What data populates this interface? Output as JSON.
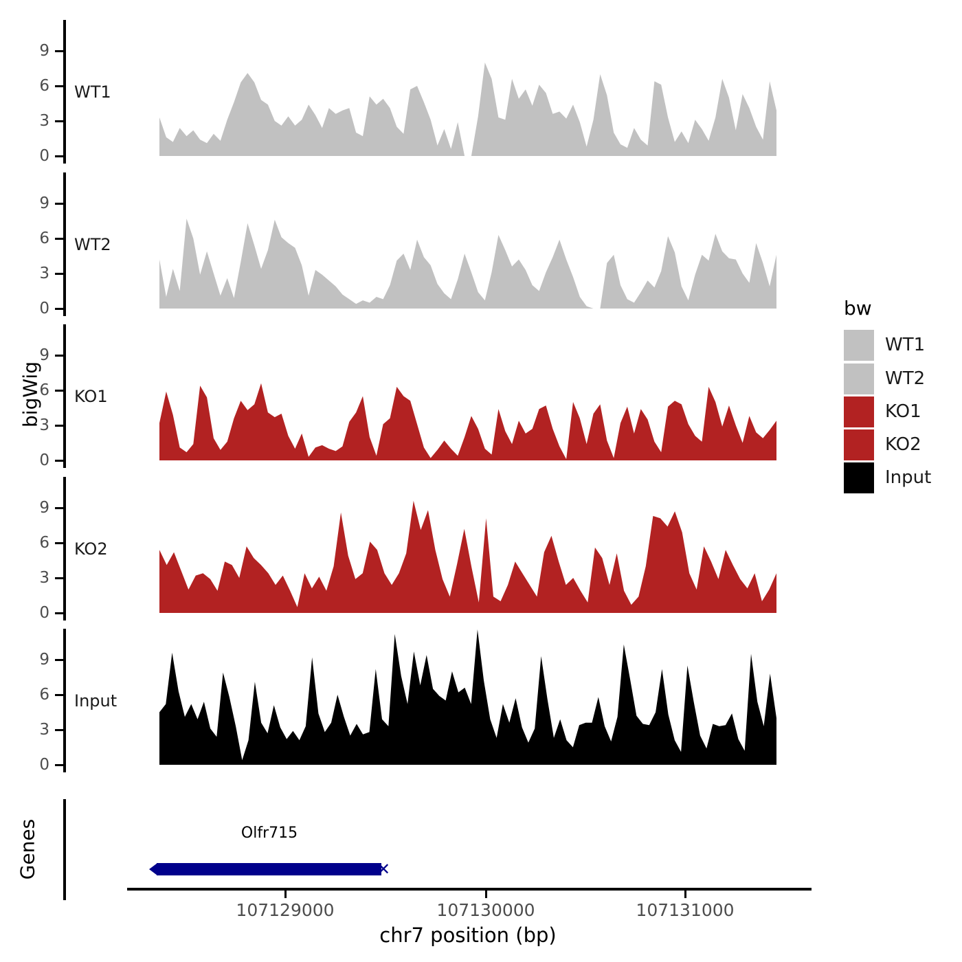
{
  "figure": {
    "y_axis_label": "bigWig",
    "genes_label": "Genes",
    "y_ticks": [
      "9",
      "6",
      "3",
      "0"
    ],
    "x_axis": {
      "title": "chr7 position (bp)",
      "ticks": [
        "107129000",
        "107130000",
        "107131000"
      ]
    }
  },
  "tracks": [
    {
      "label": "WT1",
      "color": "#c1c1c1"
    },
    {
      "label": "WT2",
      "color": "#c1c1c1"
    },
    {
      "label": "KO1",
      "color": "#b22222"
    },
    {
      "label": "KO2",
      "color": "#b22222"
    },
    {
      "label": "Input",
      "color": "#000000"
    }
  ],
  "legend": {
    "title": "bw",
    "items": [
      {
        "label": "WT1",
        "color": "#c1c1c1"
      },
      {
        "label": "WT2",
        "color": "#c1c1c1"
      },
      {
        "label": "KO1",
        "color": "#b22222"
      },
      {
        "label": "KO2",
        "color": "#b22222"
      },
      {
        "label": "Input",
        "color": "#000000"
      }
    ]
  },
  "gene": {
    "label": "Olfr715",
    "strand": "-",
    "color": "#00008b",
    "end_marker": "✕",
    "approx_start_bp": 107128360,
    "approx_end_bp": 107129480
  },
  "chart_data": {
    "type": "area",
    "title": "",
    "xlabel": "chr7 position (bp)",
    "ylabel": "bigWig",
    "x_range_bp": [
      107128370,
      107131460
    ],
    "x_tick_values": [
      107129000,
      107130000,
      107131000
    ],
    "y_tick_values": [
      0,
      3,
      6,
      9
    ],
    "ylim": [
      0,
      11.6
    ],
    "grid": false,
    "legend_position": "right",
    "layout": "five stacked genome coverage tracks sharing one x axis, plus a gene model track",
    "series": [
      {
        "name": "WT1",
        "color": "#c1c1c1",
        "values": [
          3.3,
          1.6,
          1.2,
          2.4,
          1.7,
          2.2,
          1.4,
          1.1,
          1.9,
          1.3,
          3.1,
          4.6,
          6.3,
          7.1,
          6.3,
          4.8,
          4.4,
          3.0,
          2.6,
          3.4,
          2.6,
          3.1,
          4.4,
          3.5,
          2.4,
          4.1,
          3.6,
          3.9,
          4.1,
          2.0,
          1.7,
          5.1,
          4.4,
          4.9,
          4.1,
          2.5,
          1.9,
          5.7,
          6.0,
          4.6,
          3.1,
          0.9,
          2.3,
          0.6,
          2.9,
          0.0,
          0.0,
          3.4,
          8.0,
          6.6,
          3.3,
          3.1,
          6.6,
          4.9,
          5.7,
          4.3,
          6.1,
          5.4,
          3.6,
          3.8,
          3.2,
          4.4,
          2.9,
          0.8,
          3.1,
          7.0,
          5.2,
          2.0,
          1.0,
          0.7,
          2.4,
          1.4,
          0.9,
          6.4,
          6.1,
          3.3,
          1.2,
          2.1,
          1.1,
          3.1,
          2.3,
          1.3,
          3.3,
          6.6,
          5.0,
          2.2,
          5.3,
          4.1,
          2.5,
          1.4,
          6.4,
          3.9
        ]
      },
      {
        "name": "WT2",
        "color": "#c1c1c1",
        "values": [
          4.2,
          1.0,
          3.4,
          1.5,
          7.7,
          6.0,
          2.9,
          4.9,
          3.0,
          1.1,
          2.6,
          0.9,
          4.0,
          7.3,
          5.4,
          3.4,
          5.0,
          7.6,
          6.1,
          5.6,
          5.2,
          3.7,
          1.1,
          3.3,
          2.9,
          2.4,
          1.9,
          1.2,
          0.8,
          0.4,
          0.7,
          0.5,
          1.0,
          0.8,
          2.0,
          4.1,
          4.7,
          3.3,
          5.9,
          4.4,
          3.7,
          2.1,
          1.3,
          0.8,
          2.5,
          4.7,
          3.1,
          1.4,
          0.7,
          3.1,
          6.3,
          5.0,
          3.6,
          4.2,
          3.3,
          2.0,
          1.5,
          3.1,
          4.4,
          5.9,
          4.2,
          2.7,
          1.0,
          0.2,
          0.0,
          0.0,
          3.9,
          4.6,
          2.0,
          0.8,
          0.5,
          1.4,
          2.4,
          1.8,
          3.2,
          6.2,
          4.8,
          1.9,
          0.7,
          2.9,
          4.6,
          4.1,
          6.4,
          4.9,
          4.3,
          4.2,
          3.0,
          2.2,
          5.6,
          3.9,
          1.9,
          4.6
        ]
      },
      {
        "name": "KO1",
        "color": "#b22222",
        "values": [
          3.2,
          5.9,
          3.9,
          1.1,
          0.7,
          1.4,
          6.4,
          5.4,
          1.9,
          0.9,
          1.6,
          3.6,
          5.1,
          4.3,
          4.8,
          6.6,
          4.1,
          3.7,
          4.0,
          2.1,
          1.0,
          2.3,
          0.3,
          1.1,
          1.3,
          1.0,
          0.8,
          1.2,
          3.3,
          4.1,
          5.5,
          2.0,
          0.4,
          3.1,
          3.6,
          6.3,
          5.5,
          5.1,
          3.1,
          1.1,
          0.2,
          0.9,
          1.7,
          1.0,
          0.4,
          2.0,
          3.8,
          2.7,
          1.0,
          0.5,
          4.4,
          2.5,
          1.4,
          3.4,
          2.3,
          2.7,
          4.4,
          4.7,
          2.7,
          1.2,
          0.1,
          5.0,
          3.6,
          1.4,
          4.0,
          4.8,
          1.7,
          0.2,
          3.2,
          4.6,
          2.3,
          4.4,
          3.5,
          1.6,
          0.7,
          4.6,
          5.1,
          4.8,
          3.1,
          2.1,
          1.6,
          6.3,
          5.0,
          2.9,
          4.7,
          3.0,
          1.5,
          3.8,
          2.4,
          1.9,
          2.6,
          3.4
        ]
      },
      {
        "name": "KO2",
        "color": "#b22222",
        "values": [
          5.4,
          4.1,
          5.2,
          3.6,
          2.0,
          3.2,
          3.4,
          2.9,
          1.9,
          4.4,
          4.1,
          3.0,
          5.7,
          4.7,
          4.1,
          3.4,
          2.4,
          3.2,
          1.9,
          0.5,
          3.4,
          2.1,
          3.1,
          1.9,
          4.0,
          8.6,
          4.9,
          2.9,
          3.4,
          6.1,
          5.4,
          3.4,
          2.4,
          3.4,
          5.1,
          9.6,
          7.1,
          8.8,
          5.4,
          2.9,
          1.4,
          4.2,
          7.2,
          3.9,
          0.9,
          8.1,
          1.4,
          1.0,
          2.4,
          4.4,
          3.4,
          2.4,
          1.4,
          5.2,
          6.6,
          4.4,
          2.4,
          3.0,
          1.9,
          0.9,
          5.6,
          4.7,
          2.4,
          5.1,
          1.9,
          0.7,
          1.4,
          4.0,
          8.3,
          8.1,
          7.4,
          8.7,
          6.9,
          3.4,
          2.0,
          5.7,
          4.4,
          2.9,
          5.4,
          4.1,
          2.9,
          2.1,
          3.4,
          1.0,
          2.0,
          3.4
        ]
      },
      {
        "name": "Input",
        "color": "#000000",
        "values": [
          4.5,
          5.2,
          9.6,
          6.3,
          4.1,
          5.2,
          3.9,
          5.4,
          3.1,
          2.4,
          7.9,
          5.8,
          3.3,
          0.4,
          2.1,
          7.1,
          3.6,
          2.7,
          5.1,
          3.2,
          2.2,
          2.9,
          2.1,
          3.3,
          9.2,
          4.4,
          2.8,
          3.6,
          6.0,
          4.1,
          2.5,
          3.5,
          2.6,
          2.8,
          8.2,
          3.9,
          3.3,
          11.2,
          7.6,
          5.2,
          9.7,
          6.8,
          9.4,
          6.5,
          5.9,
          5.5,
          8.0,
          6.2,
          6.6,
          5.2,
          11.6,
          7.2,
          3.9,
          2.3,
          5.2,
          3.6,
          5.7,
          3.2,
          1.9,
          3.1,
          9.3,
          5.6,
          2.3,
          3.9,
          2.1,
          1.5,
          3.4,
          3.6,
          3.6,
          5.8,
          3.3,
          2.0,
          4.1,
          10.3,
          7.3,
          4.2,
          3.5,
          3.4,
          4.5,
          8.2,
          4.3,
          2.1,
          1.1,
          8.5,
          5.4,
          2.5,
          1.4,
          3.5,
          3.3,
          3.4,
          4.4,
          2.2,
          1.2,
          9.5,
          5.4,
          3.3,
          7.8,
          4.0
        ]
      }
    ],
    "genes_track": {
      "gene_label": "Olfr715",
      "gene_span_bp": [
        107128360,
        107129480
      ],
      "strand": "-"
    }
  }
}
